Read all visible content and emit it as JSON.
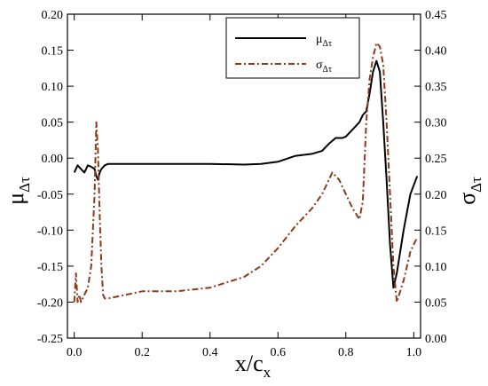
{
  "chart_data": {
    "type": "line",
    "xlabel": {
      "main": "x/c",
      "sub": "x"
    },
    "ylabel_left": {
      "main": "μ",
      "sub": "Δτ"
    },
    "ylabel_right": {
      "main": "σ",
      "sub": "Δτ"
    },
    "xlim": [
      -0.02,
      1.02
    ],
    "ylim_left": [
      -0.25,
      0.2
    ],
    "ylim_right": [
      0.0,
      0.45
    ],
    "xticks": [
      "0.0",
      "0.2",
      "0.4",
      "0.6",
      "0.8",
      "1.0"
    ],
    "xtick_values": [
      0.0,
      0.2,
      0.4,
      0.6,
      0.8,
      1.0
    ],
    "yticks_left": [
      "-0.25",
      "-0.20",
      "-0.15",
      "-0.10",
      "-0.05",
      "0.00",
      "0.05",
      "0.10",
      "0.15",
      "0.20"
    ],
    "ytick_values_left": [
      -0.25,
      -0.2,
      -0.15,
      -0.1,
      -0.05,
      0.0,
      0.05,
      0.1,
      0.15,
      0.2
    ],
    "yticks_right": [
      "0.00",
      "0.05",
      "0.10",
      "0.15",
      "0.20",
      "0.25",
      "0.30",
      "0.35",
      "0.40",
      "0.45"
    ],
    "ytick_values_right": [
      0.0,
      0.05,
      0.1,
      0.15,
      0.2,
      0.25,
      0.3,
      0.35,
      0.4,
      0.45
    ],
    "grid": false,
    "legend_position": "top-right",
    "series": [
      {
        "name": {
          "main": "μ",
          "sub": "Δτ"
        },
        "axis": "left",
        "color": "#000000",
        "style": "solid",
        "x": [
          0.0,
          0.01,
          0.02,
          0.03,
          0.04,
          0.05,
          0.06,
          0.065,
          0.07,
          0.075,
          0.08,
          0.09,
          0.1,
          0.15,
          0.2,
          0.3,
          0.4,
          0.5,
          0.55,
          0.6,
          0.65,
          0.7,
          0.73,
          0.75,
          0.77,
          0.79,
          0.8,
          0.82,
          0.84,
          0.85,
          0.86,
          0.87,
          0.88,
          0.89,
          0.9,
          0.91,
          0.92,
          0.93,
          0.94,
          0.95,
          0.97,
          0.99,
          1.01
        ],
        "y": [
          -0.02,
          -0.01,
          -0.015,
          -0.02,
          -0.01,
          -0.012,
          -0.015,
          -0.025,
          -0.03,
          -0.02,
          -0.015,
          -0.01,
          -0.008,
          -0.008,
          -0.008,
          -0.008,
          -0.008,
          -0.009,
          -0.008,
          -0.005,
          0.003,
          0.006,
          0.01,
          0.02,
          0.028,
          0.028,
          0.03,
          0.04,
          0.05,
          0.06,
          0.065,
          0.09,
          0.12,
          0.135,
          0.12,
          0.05,
          -0.03,
          -0.12,
          -0.18,
          -0.16,
          -0.1,
          -0.05,
          -0.025
        ]
      },
      {
        "name": {
          "main": "σ",
          "sub": "Δτ"
        },
        "axis": "right",
        "color": "#8b3a1a",
        "style": "dashdot",
        "x": [
          0.0,
          0.005,
          0.01,
          0.015,
          0.02,
          0.03,
          0.04,
          0.05,
          0.06,
          0.065,
          0.07,
          0.075,
          0.08,
          0.085,
          0.09,
          0.1,
          0.15,
          0.2,
          0.3,
          0.4,
          0.5,
          0.55,
          0.6,
          0.65,
          0.7,
          0.73,
          0.75,
          0.76,
          0.78,
          0.8,
          0.82,
          0.84,
          0.85,
          0.86,
          0.87,
          0.88,
          0.89,
          0.9,
          0.91,
          0.92,
          0.93,
          0.94,
          0.95,
          0.97,
          0.99,
          1.01
        ],
        "y": [
          0.05,
          0.09,
          0.05,
          0.06,
          0.05,
          0.06,
          0.07,
          0.1,
          0.2,
          0.3,
          0.26,
          0.17,
          0.1,
          0.06,
          0.055,
          0.055,
          0.06,
          0.065,
          0.065,
          0.07,
          0.085,
          0.1,
          0.125,
          0.155,
          0.18,
          0.2,
          0.22,
          0.23,
          0.22,
          0.2,
          0.18,
          0.165,
          0.19,
          0.3,
          0.36,
          0.39,
          0.41,
          0.405,
          0.38,
          0.3,
          0.2,
          0.1,
          0.05,
          0.08,
          0.12,
          0.14
        ]
      }
    ]
  }
}
